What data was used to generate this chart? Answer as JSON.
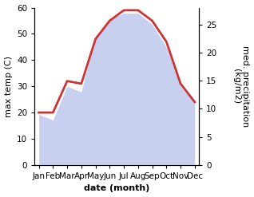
{
  "months": [
    "Jan",
    "Feb",
    "Mar",
    "Apr",
    "May",
    "Jun",
    "Jul",
    "Aug",
    "Sep",
    "Oct",
    "Nov",
    "Dec"
  ],
  "temp": [
    20,
    20,
    32,
    31,
    48,
    55,
    59,
    59,
    55,
    47,
    31,
    24
  ],
  "precip": [
    9,
    8,
    14,
    13,
    23,
    26,
    27,
    27,
    25,
    21,
    14,
    11
  ],
  "temp_color": "#cc3333",
  "fill_color": "#c8d0f0",
  "fill_alpha": 1.0,
  "ylabel_left": "max temp (C)",
  "ylabel_right": "med. precipitation\n(kg/m2)",
  "xlabel": "date (month)",
  "ylim_left": [
    0,
    60
  ],
  "ylim_right": [
    0,
    28
  ],
  "yticks_left": [
    0,
    10,
    20,
    30,
    40,
    50,
    60
  ],
  "yticks_right": [
    0,
    5,
    10,
    15,
    20,
    25
  ],
  "background_color": "#ffffff",
  "line_width": 2.0,
  "label_fontsize": 8,
  "tick_fontsize": 7.5
}
